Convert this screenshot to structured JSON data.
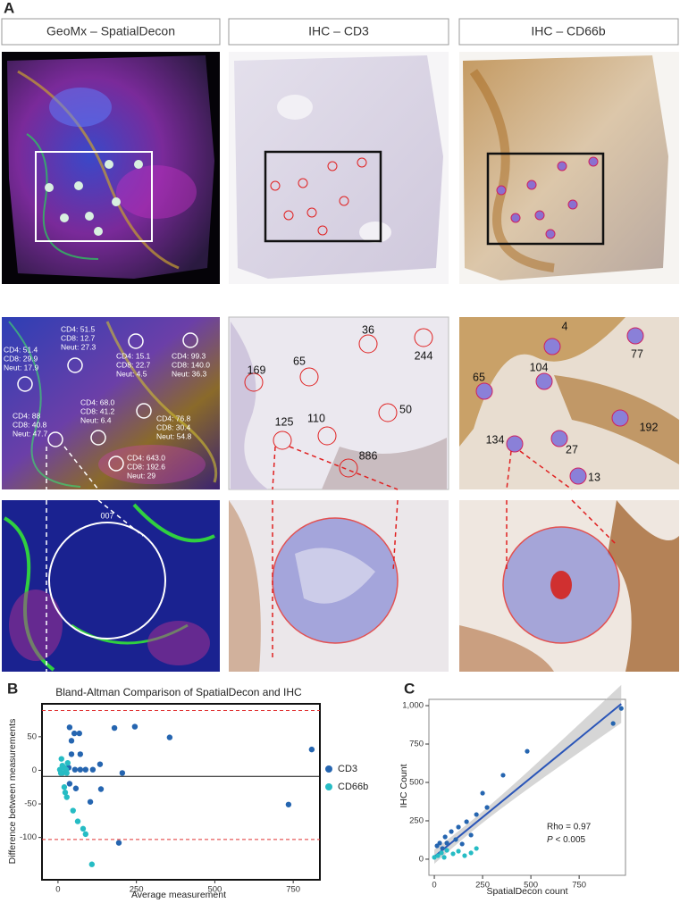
{
  "panel_a": {
    "label": "A",
    "headers": [
      "GeoMx – SpatialDecon",
      "IHC – CD3",
      "IHC – CD66b"
    ],
    "geomx_rois": [
      [
        "CD4:  51.4",
        "CD8:  29.9",
        "Neut: 17.9"
      ],
      [
        "CD4:  51.5",
        "CD8:  12.7",
        "Neut: 27.3"
      ],
      [
        "CD4:  15.1",
        "CD8:  22.7",
        "Neut: 4.5"
      ],
      [
        "CD4:  99.3",
        "CD8:  140.0",
        "Neut: 36.3"
      ],
      [
        "CD4:  88",
        "CD8:  40.8",
        "Neut: 47.7"
      ],
      [
        "CD4:  68.0",
        "CD8:  41.2",
        "Neut: 6.4"
      ],
      [
        "CD4:  76.8",
        "CD8:  30.4",
        "Neut: 54.8"
      ],
      [
        "CD4:  643.0",
        "CD8:  192.6",
        "Neut: 29"
      ]
    ],
    "roi_id": "007",
    "cd3_counts": [
      36,
      244,
      169,
      65,
      50,
      110,
      125,
      886
    ],
    "cd66b_counts": [
      4,
      77,
      65,
      104,
      192,
      134,
      27,
      13
    ]
  },
  "chart_data": [
    {
      "type": "scatter",
      "label": "B",
      "title": "Bland-Altman Comparison of SpatialDecon and IHC",
      "x_label": "Average measurement",
      "y_label": "Difference between measurements",
      "xlim": [
        -51,
        835
      ],
      "ylim": [
        -163,
        99
      ],
      "xticks": [
        0,
        250,
        500,
        750
      ],
      "yticks": [
        -100,
        -50,
        0,
        50
      ],
      "mean_difference": -9,
      "limits_of_agreement": [
        -103,
        89
      ],
      "legend": "right",
      "series": [
        {
          "name": "CD3",
          "color": "#2565b0",
          "x": [
            37,
            52,
            43,
            68,
            43,
            34,
            71,
            54,
            71,
            88,
            111,
            37,
            57,
            137,
            180,
            245,
            356,
            134,
            205,
            194,
            103,
            735,
            809
          ],
          "y": [
            64,
            55,
            44,
            55,
            24,
            4,
            24,
            1,
            1,
            1,
            1,
            -20,
            -27,
            -28,
            63,
            65,
            49,
            9,
            -4,
            -108,
            -47,
            -51,
            31
          ]
        },
        {
          "name": "CD66b",
          "color": "#26bcc4",
          "x": [
            6,
            14,
            20,
            26,
            14,
            28,
            11,
            20,
            23,
            28,
            48,
            63,
            80,
            88,
            108,
            31,
            9
          ],
          "y": [
            1,
            7,
            4,
            1,
            -4,
            -4,
            17,
            -25,
            -33,
            -40,
            -60,
            -76,
            -87,
            -95,
            -140,
            11,
            -4
          ]
        }
      ]
    },
    {
      "type": "scatter",
      "label": "C",
      "x_label": "SpatialDecon count",
      "y_label": "IHC Count",
      "xlim": [
        -28,
        990
      ],
      "ylim": [
        -105,
        1041
      ],
      "xticks": [
        0,
        250,
        500,
        750
      ],
      "yticks": [
        0,
        250,
        500,
        750,
        {
          "value": 1000,
          "label": "1,000"
        }
      ],
      "fit": "linear",
      "fit_color": "#2a55b8",
      "annotation": "Rho = 0.97",
      "p_symbol": "P",
      "p_text": " < 0.005",
      "series": [
        {
          "name": "CD3",
          "color": "#2565b0",
          "x": [
            968,
            926,
            481,
            356,
            250,
            273,
            218,
            167,
            125,
            88,
            56,
            28,
            65,
            111,
            144,
            190,
            14,
            42
          ],
          "y": [
            982,
            884,
            703,
            547,
            430,
            337,
            291,
            244,
            209,
            180,
            145,
            105,
            105,
            128,
            99,
            157,
            87,
            70
          ]
        },
        {
          "name": "CD66b",
          "color": "#26bcc4",
          "x": [
            0,
            19,
            37,
            65,
            97,
            125,
            157,
            190,
            218,
            51
          ],
          "y": [
            12,
            23,
            41,
            58,
            35,
            52,
            23,
            41,
            70,
            12
          ]
        }
      ]
    }
  ]
}
